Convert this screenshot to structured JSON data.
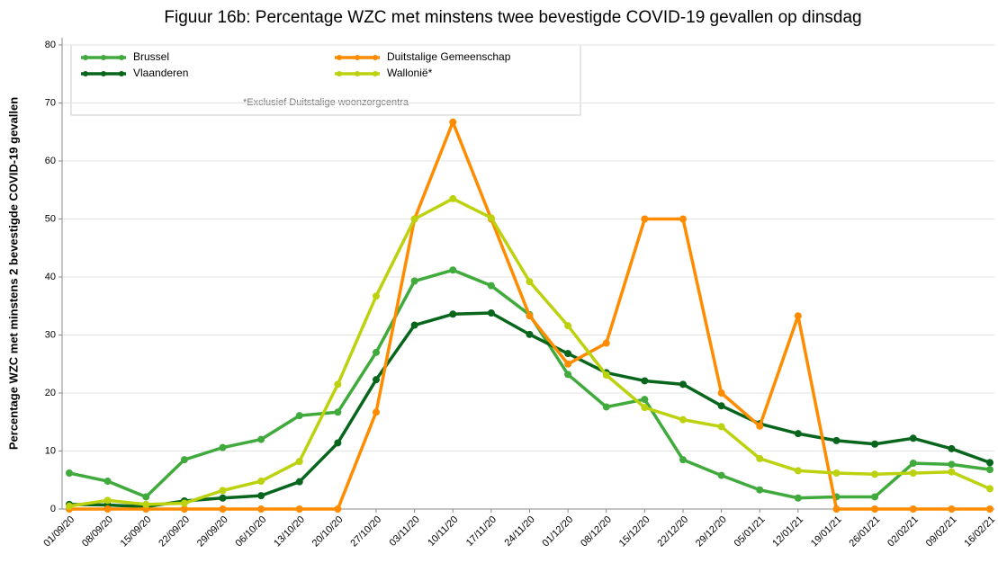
{
  "chart_data": {
    "type": "line",
    "title": "Figuur 16b: Percentage WZC met minstens twee bevestigde COVID-19 gevallen op dinsdag",
    "y_label": "Percentage WZC met minstens 2 bevestigde COVID-19 gevallen",
    "annotation": "*Exclusief Duitstalige woonzorgcentra",
    "categories": [
      "01/09/20",
      "08/09/20",
      "15/09/20",
      "22/09/20",
      "29/09/20",
      "06/10/20",
      "13/10/20",
      "20/10/20",
      "27/10/20",
      "03/11/20",
      "10/11/20",
      "17/11/20",
      "24/11/20",
      "01/12/20",
      "08/12/20",
      "15/12/20",
      "22/12/20",
      "29/12/20",
      "05/01/21",
      "12/01/21",
      "19/01/21",
      "26/01/21",
      "02/02/21",
      "09/02/21",
      "16/02/21"
    ],
    "series": [
      {
        "name": "Brussel",
        "color": "#40aa3c",
        "values": [
          6.2,
          4.8,
          2.1,
          8.5,
          10.6,
          12.0,
          16.1,
          16.7,
          27.0,
          39.3,
          41.2,
          38.5,
          33.5,
          23.2,
          17.6,
          18.9,
          8.5,
          5.8,
          3.3,
          1.9,
          2.1,
          2.1,
          7.9,
          7.7,
          6.8
        ]
      },
      {
        "name": "Duitstalige Gemeenschap",
        "color": "#ff8c00",
        "values": [
          0,
          0,
          0,
          0,
          0,
          0,
          0,
          0,
          16.7,
          50,
          66.7,
          50,
          33.3,
          25,
          28.6,
          50,
          50,
          20,
          14.3,
          33.3,
          0,
          0,
          0,
          0,
          0
        ]
      },
      {
        "name": "Vlaanderen",
        "color": "#07661c",
        "values": [
          0.8,
          0.7,
          0.4,
          1.4,
          1.9,
          2.3,
          4.7,
          11.4,
          22.3,
          31.7,
          33.6,
          33.8,
          30.1,
          26.8,
          23.5,
          22.1,
          21.5,
          17.8,
          14.7,
          13.0,
          11.8,
          11.2,
          12.2,
          10.4,
          8.0
        ]
      },
      {
        "name": "Wallonië*",
        "color": "#bcd20f",
        "values": [
          0.5,
          1.5,
          0.8,
          1.0,
          3.2,
          4.8,
          8.2,
          21.5,
          36.7,
          50.0,
          53.5,
          50.2,
          39.2,
          31.6,
          23.1,
          17.5,
          15.4,
          14.2,
          8.7,
          6.6,
          6.2,
          6.0,
          6.2,
          6.4,
          3.5
        ]
      }
    ],
    "ylim": [
      0,
      80
    ],
    "yticks": [
      0,
      10,
      20,
      30,
      40,
      50,
      60,
      70,
      80
    ],
    "grid": true
  }
}
